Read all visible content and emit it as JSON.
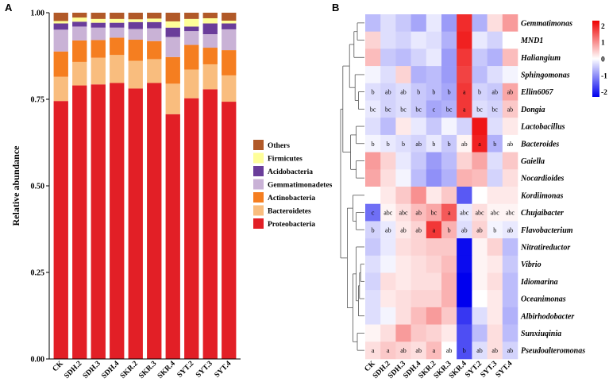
{
  "chart_data": [
    {
      "panel_label": "A",
      "type": "bar",
      "stacked": true,
      "ylabel": "Relative abundance",
      "ylim": [
        0,
        1
      ],
      "yticks": [
        "0.00",
        "0.25",
        "0.50",
        "0.75",
        "1.00"
      ],
      "categories": [
        "CK",
        "SDH.2",
        "SDH.3",
        "SDH.4",
        "SKR.2",
        "SKR.3",
        "SKR.4",
        "SYT.2",
        "SYT.3",
        "SYT.4"
      ],
      "legend_position": "right",
      "series": [
        {
          "name": "Proteobacteria",
          "color": "#e21f26",
          "values": [
            0.745,
            0.79,
            0.793,
            0.797,
            0.781,
            0.797,
            0.707,
            0.753,
            0.779,
            0.743
          ]
        },
        {
          "name": "Bacteroidetes",
          "color": "#f9bd7e",
          "values": [
            0.07,
            0.068,
            0.077,
            0.081,
            0.08,
            0.069,
            0.088,
            0.083,
            0.072,
            0.076
          ]
        },
        {
          "name": "Actinobacteria",
          "color": "#f57e20",
          "values": [
            0.073,
            0.062,
            0.051,
            0.05,
            0.061,
            0.052,
            0.077,
            0.071,
            0.048,
            0.073
          ]
        },
        {
          "name": "Gemmatimonadetes",
          "color": "#c9b2d6",
          "values": [
            0.063,
            0.04,
            0.036,
            0.029,
            0.031,
            0.037,
            0.058,
            0.04,
            0.039,
            0.06
          ]
        },
        {
          "name": "Acidobacteria",
          "color": "#6a3d9a",
          "values": [
            0.018,
            0.014,
            0.014,
            0.014,
            0.02,
            0.018,
            0.027,
            0.013,
            0.031,
            0.017
          ]
        },
        {
          "name": "Firmicutes",
          "color": "#fefe99",
          "values": [
            0.007,
            0.012,
            0.011,
            0.011,
            0.008,
            0.01,
            0.018,
            0.022,
            0.015,
            0.008
          ]
        },
        {
          "name": "Others",
          "color": "#b15928",
          "values": [
            0.024,
            0.014,
            0.018,
            0.018,
            0.019,
            0.017,
            0.025,
            0.018,
            0.016,
            0.023
          ]
        }
      ]
    },
    {
      "panel_label": "B",
      "type": "heatmap",
      "columns": [
        "CK",
        "SDH.2",
        "SDH.3",
        "SDH.4",
        "SKR.2",
        "SKR.3",
        "SKR.4",
        "SYT.2",
        "SYT.3",
        "SYT.4"
      ],
      "rows": [
        "Gemmatimonas",
        "MND1",
        "Haliangium",
        "Sphingomonas",
        "Ellin6067",
        "Dongia",
        "Lactobacillus",
        "Bacteroides",
        "Gaiella",
        "Nocardioides",
        "Kordiimonas",
        "Chujaibacter",
        "Flavobacterium",
        "Nitratireductor",
        "Vibrio",
        "Idiomarina",
        "Oceanimonas",
        "Albirhodobacter",
        "Sunxiuqinia",
        "Pseudoalteromonas"
      ],
      "values": [
        [
          -0.6,
          -0.3,
          -0.5,
          -0.8,
          -0.2,
          -0.9,
          1.9,
          -0.7,
          0.3,
          0.9
        ],
        [
          0.4,
          -0.3,
          -0.4,
          -0.2,
          -0.3,
          -0.7,
          2.0,
          -0.2,
          -0.4,
          0.0
        ],
        [
          0.6,
          -0.5,
          -0.6,
          -0.4,
          -0.2,
          -0.9,
          1.8,
          -0.5,
          -0.7,
          0.6
        ],
        [
          -0.1,
          -0.3,
          0.4,
          -0.7,
          -0.6,
          -0.9,
          1.7,
          -0.6,
          -0.3,
          -0.1
        ],
        [
          -0.3,
          -0.4,
          -0.3,
          -0.5,
          -0.6,
          -0.8,
          1.8,
          -0.4,
          -0.5,
          0.8
        ],
        [
          -0.2,
          -0.4,
          -0.3,
          -0.5,
          -0.8,
          -0.7,
          1.8,
          -0.3,
          -0.4,
          0.5
        ],
        [
          -0.3,
          -0.6,
          0.2,
          -0.2,
          -0.5,
          -0.1,
          -0.4,
          2.1,
          -0.3,
          0.2
        ],
        [
          -0.1,
          -0.2,
          -0.3,
          -0.4,
          -0.2,
          -0.5,
          0.1,
          2.0,
          -0.7,
          0.0
        ],
        [
          0.9,
          0.4,
          -0.2,
          -0.5,
          -0.9,
          -0.6,
          0.4,
          0.8,
          -0.3,
          0.5
        ],
        [
          0.8,
          0.3,
          -0.1,
          -0.6,
          -1.0,
          -0.7,
          0.7,
          0.6,
          -0.4,
          0.3
        ],
        [
          0.0,
          0.2,
          0.5,
          1.0,
          0.2,
          0.5,
          -1.5,
          0.0,
          0.2,
          0.2
        ],
        [
          -1.3,
          0.1,
          0.3,
          0.6,
          0.8,
          1.5,
          -0.2,
          0.3,
          0.1,
          0.1
        ],
        [
          -0.4,
          -0.2,
          0.2,
          0.4,
          1.8,
          0.7,
          -0.3,
          0.4,
          -0.1,
          -0.2
        ],
        [
          -0.5,
          -0.2,
          0.3,
          0.4,
          0.5,
          0.5,
          -2.2,
          0.1,
          0.4,
          -0.6
        ],
        [
          -0.3,
          -0.1,
          0.2,
          0.3,
          0.4,
          0.6,
          -2.2,
          0.1,
          0.2,
          -0.5
        ],
        [
          -0.4,
          0.3,
          0.2,
          0.3,
          0.3,
          0.7,
          -2.3,
          0.1,
          0.3,
          -0.6
        ],
        [
          -0.3,
          0.2,
          0.3,
          0.4,
          0.4,
          0.7,
          -2.3,
          0.0,
          0.2,
          -0.6
        ],
        [
          -0.3,
          -0.1,
          0.3,
          0.6,
          0.9,
          0.5,
          -1.8,
          -0.3,
          0.2,
          -0.7
        ],
        [
          0.1,
          0.3,
          0.9,
          0.5,
          0.4,
          0.2,
          -1.6,
          -0.6,
          0.3,
          -0.6
        ],
        [
          0.3,
          0.5,
          0.4,
          0.3,
          0.6,
          0.0,
          -1.6,
          -0.3,
          0.3,
          -0.4
        ]
      ],
      "annotations": [
        {
          "row": 4,
          "labels": [
            "b",
            "ab",
            "ab",
            "b",
            "b",
            "b",
            "a",
            "b",
            "ab",
            "ab"
          ]
        },
        {
          "row": 5,
          "labels": [
            "bc",
            "bc",
            "bc",
            "bc",
            "c",
            "bc",
            "a",
            "bc",
            "bc",
            "ab"
          ]
        },
        {
          "row": 7,
          "labels": [
            "b",
            "b",
            "b",
            "ab",
            "b",
            "b",
            "ab",
            "a",
            "b",
            "ab"
          ]
        },
        {
          "row": 11,
          "labels": [
            "c",
            "abc",
            "abc",
            "ab",
            "bc",
            "a",
            "abc",
            "abc",
            "abc",
            "abc"
          ]
        },
        {
          "row": 12,
          "labels": [
            "b",
            "ab",
            "ab",
            "ab",
            "a",
            "b",
            "ab",
            "ab",
            "b",
            "ab"
          ]
        },
        {
          "row": 19,
          "labels": [
            "a",
            "a",
            "ab",
            "ab",
            "a",
            "ab",
            "b",
            "ab",
            "ab",
            "ab"
          ]
        }
      ],
      "colorbar": {
        "range": [
          -2.3,
          2.3
        ],
        "ticks": [
          "2",
          "1",
          "0",
          "-1",
          "-2"
        ],
        "colors": [
          "#0000ee",
          "#ffffff",
          "#ee0000"
        ]
      }
    }
  ]
}
